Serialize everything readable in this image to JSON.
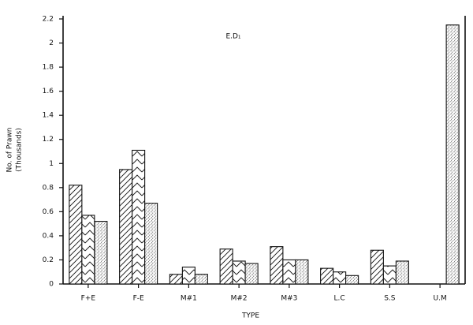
{
  "chart_data": {
    "type": "bar",
    "annotation": "E.D₁",
    "y_label": [
      "No. of Prawn",
      "(Thousands)"
    ],
    "x_label": "TYPE",
    "categories": [
      "F+E",
      "F-E",
      "M#1",
      "M#2",
      "M#3",
      "L.C",
      "S.S",
      "U.M"
    ],
    "series": [
      {
        "color": "#111111",
        "values": [
          0.82,
          0.95,
          0.08,
          0.29,
          0.31,
          0.13,
          0.28,
          null
        ]
      },
      {
        "color": "#111111",
        "values": [
          0.57,
          1.11,
          0.14,
          0.19,
          0.2,
          0.1,
          0.15,
          null
        ]
      },
      {
        "color": "#111111",
        "values": [
          0.52,
          0.67,
          0.08,
          0.17,
          0.2,
          0.07,
          0.19,
          2.15
        ]
      }
    ],
    "ylim": [
      0,
      2.2
    ],
    "yticks": [
      0,
      0.2,
      0.4,
      0.6,
      0.8,
      1,
      1.2,
      1.4,
      1.6,
      1.8,
      2,
      2.2
    ]
  }
}
